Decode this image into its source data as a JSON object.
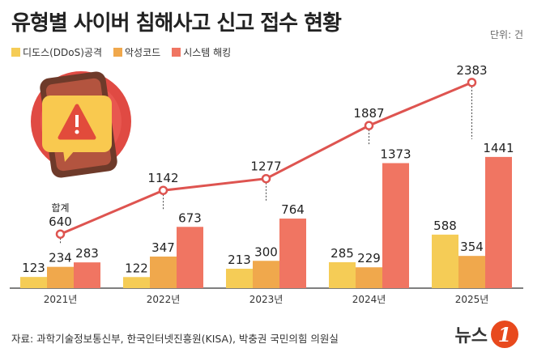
{
  "header": {
    "title": "유형별 사이버 침해사고 신고 접수 현황",
    "unit": "단위: 건"
  },
  "source": "자료: 과학기술정보통신부, 한국인터넷진흥원(KISA), 박충권 국민의힘 의원실",
  "logo": {
    "text": "뉴스",
    "mark": "1"
  },
  "colors": {
    "ddos": "#f5cc56",
    "malware": "#f0a84c",
    "hacking": "#f07562",
    "line": "#de5450",
    "axis": "#555555"
  },
  "chart_data": {
    "type": "bar",
    "categories": [
      "2021년",
      "2022년",
      "2023년",
      "2024년",
      "2025년"
    ],
    "series": [
      {
        "name": "디도스(DDoS)공격",
        "values": [
          123,
          122,
          213,
          285,
          588
        ]
      },
      {
        "name": "악성코드",
        "values": [
          234,
          347,
          300,
          229,
          354
        ]
      },
      {
        "name": "시스템 해킹",
        "values": [
          283,
          673,
          764,
          1373,
          1441
        ]
      }
    ],
    "total": {
      "label": "합계",
      "values": [
        640,
        1142,
        1277,
        1887,
        2383
      ]
    },
    "ylim": [
      0,
      1500
    ],
    "title": "유형별 사이버 침해사고 신고 접수 현황",
    "legend_position": "top-left",
    "grid": false
  }
}
